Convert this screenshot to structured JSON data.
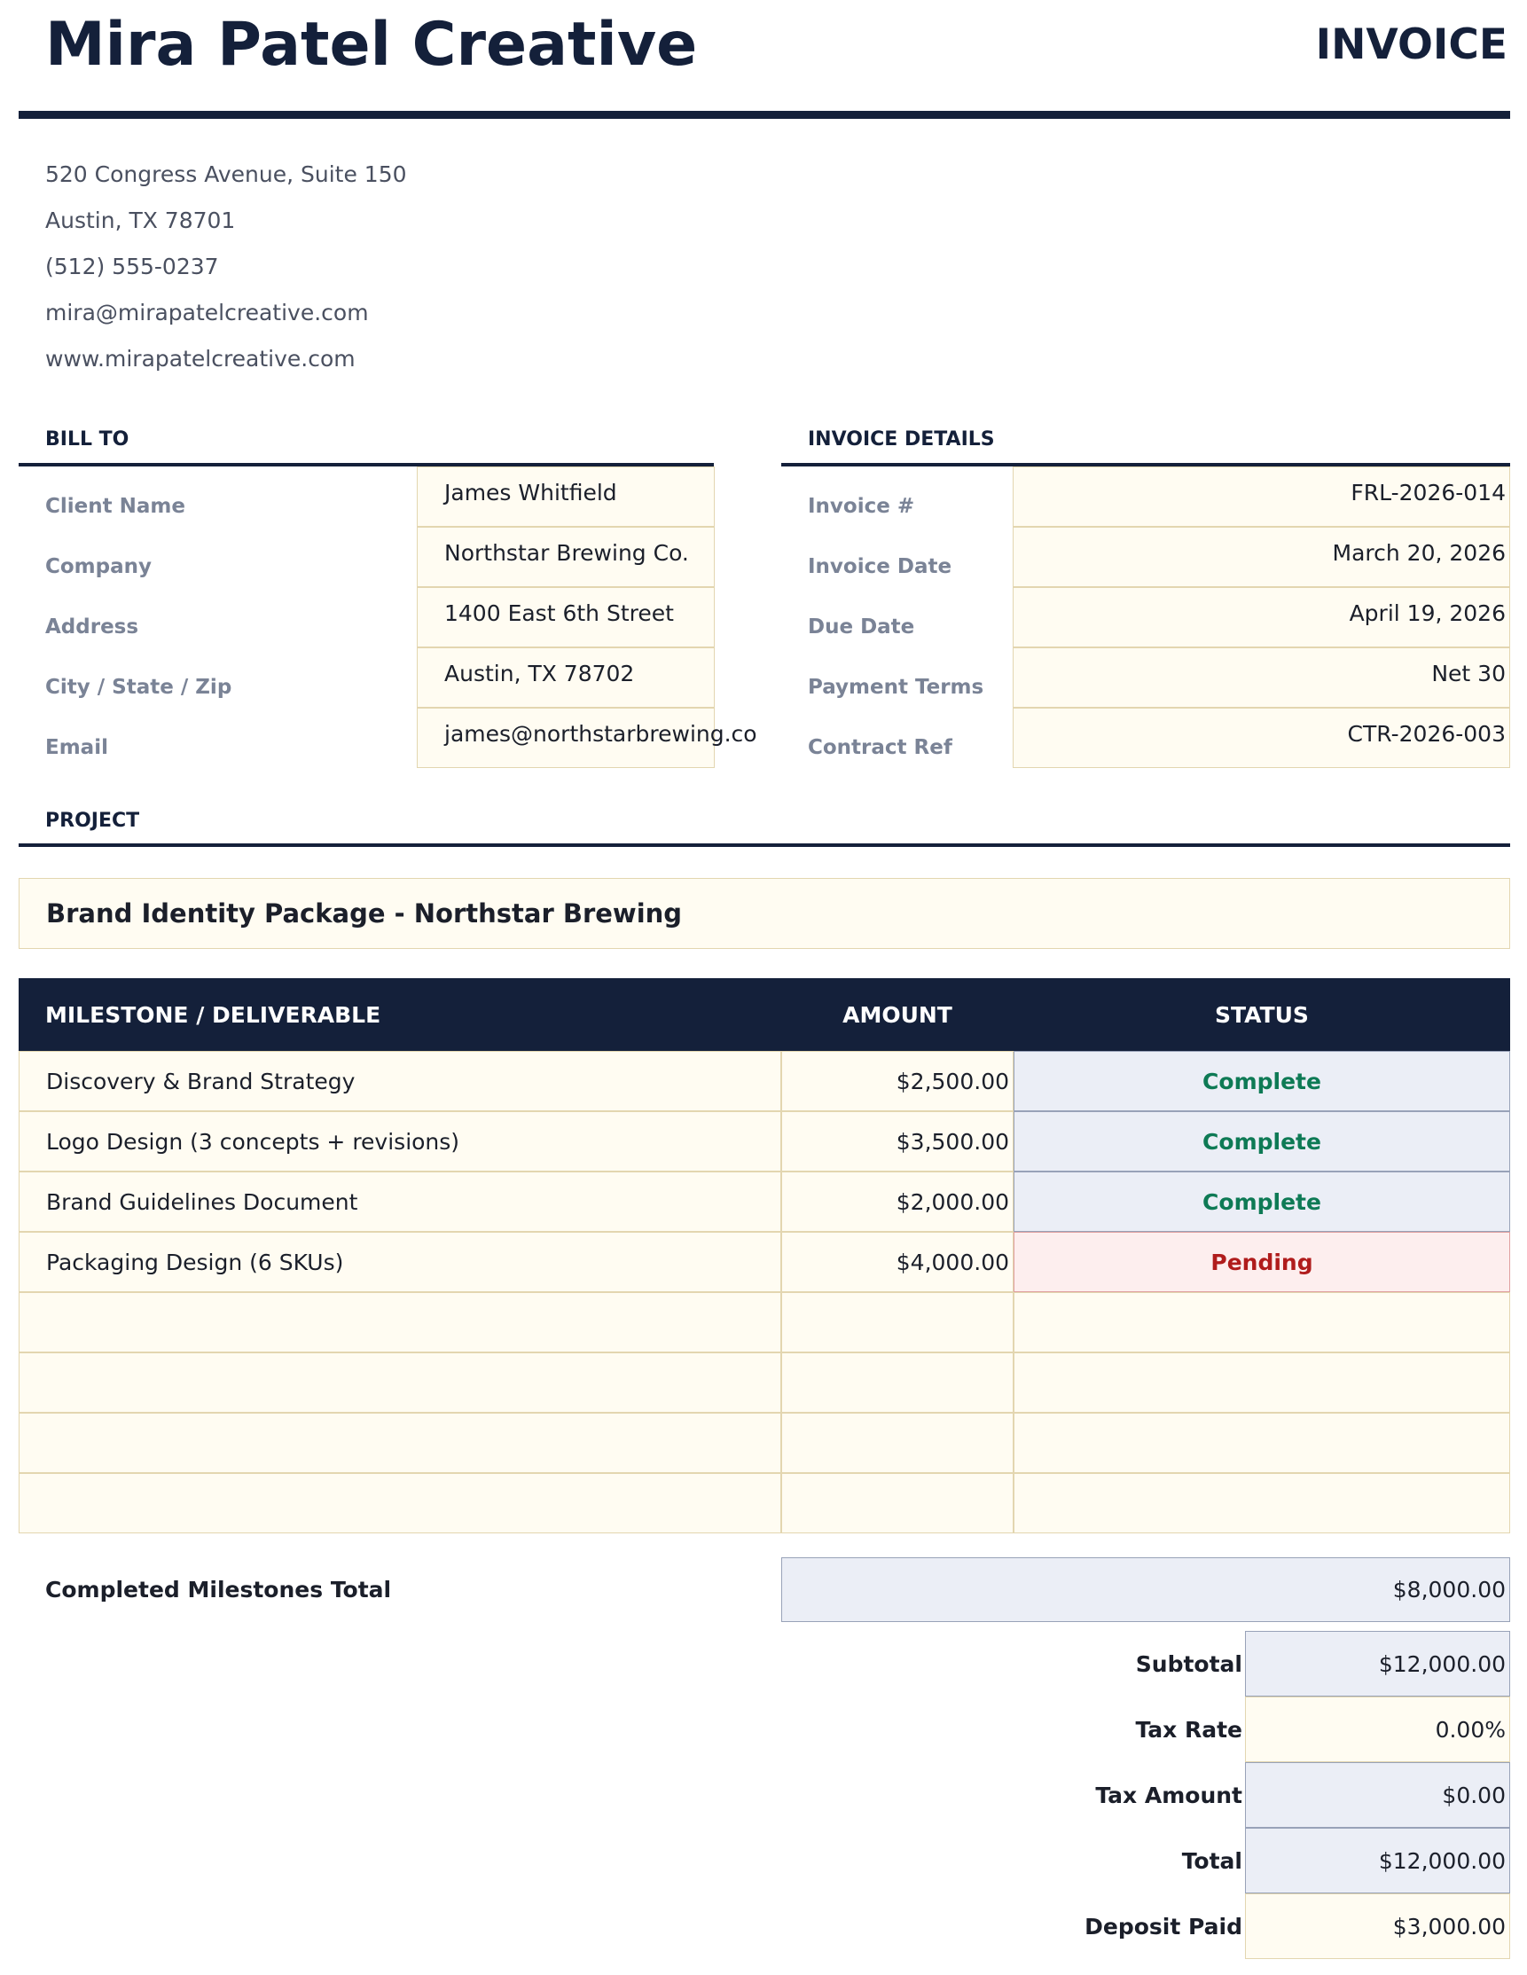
{
  "header": {
    "business_name": "Mira Patel Creative",
    "doc_title": "INVOICE",
    "address_lines": [
      "520 Congress Avenue, Suite 150",
      "Austin, TX 78701",
      "(512) 555-0237",
      "mira@mirapatelcreative.com",
      "www.mirapatelcreative.com"
    ]
  },
  "bill_to": {
    "title": "BILL TO",
    "rows": [
      [
        "Client Name",
        "James Whitfield"
      ],
      [
        "Company",
        "Northstar Brewing Co."
      ],
      [
        "Address",
        "1400 East 6th Street"
      ],
      [
        "City / State / Zip",
        "Austin, TX 78702"
      ],
      [
        "Email",
        "james@northstarbrewing.co"
      ]
    ]
  },
  "invoice_details": {
    "title": "INVOICE DETAILS",
    "rows": [
      [
        "Invoice #",
        "FRL-2026-014"
      ],
      [
        "Invoice Date",
        "March 20, 2026"
      ],
      [
        "Due Date",
        "April 19, 2026"
      ],
      [
        "Payment Terms",
        "Net 30"
      ],
      [
        "Contract Ref",
        "CTR-2026-003"
      ]
    ]
  },
  "project": {
    "title": "PROJECT",
    "name": "Brand Identity Package - Northstar Brewing"
  },
  "milestones": {
    "columns": [
      "MILESTONE / DELIVERABLE",
      "AMOUNT",
      "STATUS"
    ],
    "rows": [
      [
        "Discovery & Brand Strategy",
        "$2,500.00",
        "Complete"
      ],
      [
        "Logo Design (3 concepts + revisions)",
        "$3,500.00",
        "Complete"
      ],
      [
        "Brand Guidelines Document",
        "$2,000.00",
        "Complete"
      ],
      [
        "Packaging Design (6 SKUs)",
        "$4,000.00",
        "Pending"
      ]
    ]
  },
  "completed_total": {
    "label": "Completed Milestones Total",
    "value": "$8,000.00"
  },
  "summary": [
    [
      "Subtotal",
      "$12,000.00"
    ],
    [
      "Tax Rate",
      "0.00%"
    ],
    [
      "Tax Amount",
      "$0.00"
    ],
    [
      "Total",
      "$12,000.00"
    ],
    [
      "Deposit Paid",
      "$3,000.00"
    ]
  ]
}
